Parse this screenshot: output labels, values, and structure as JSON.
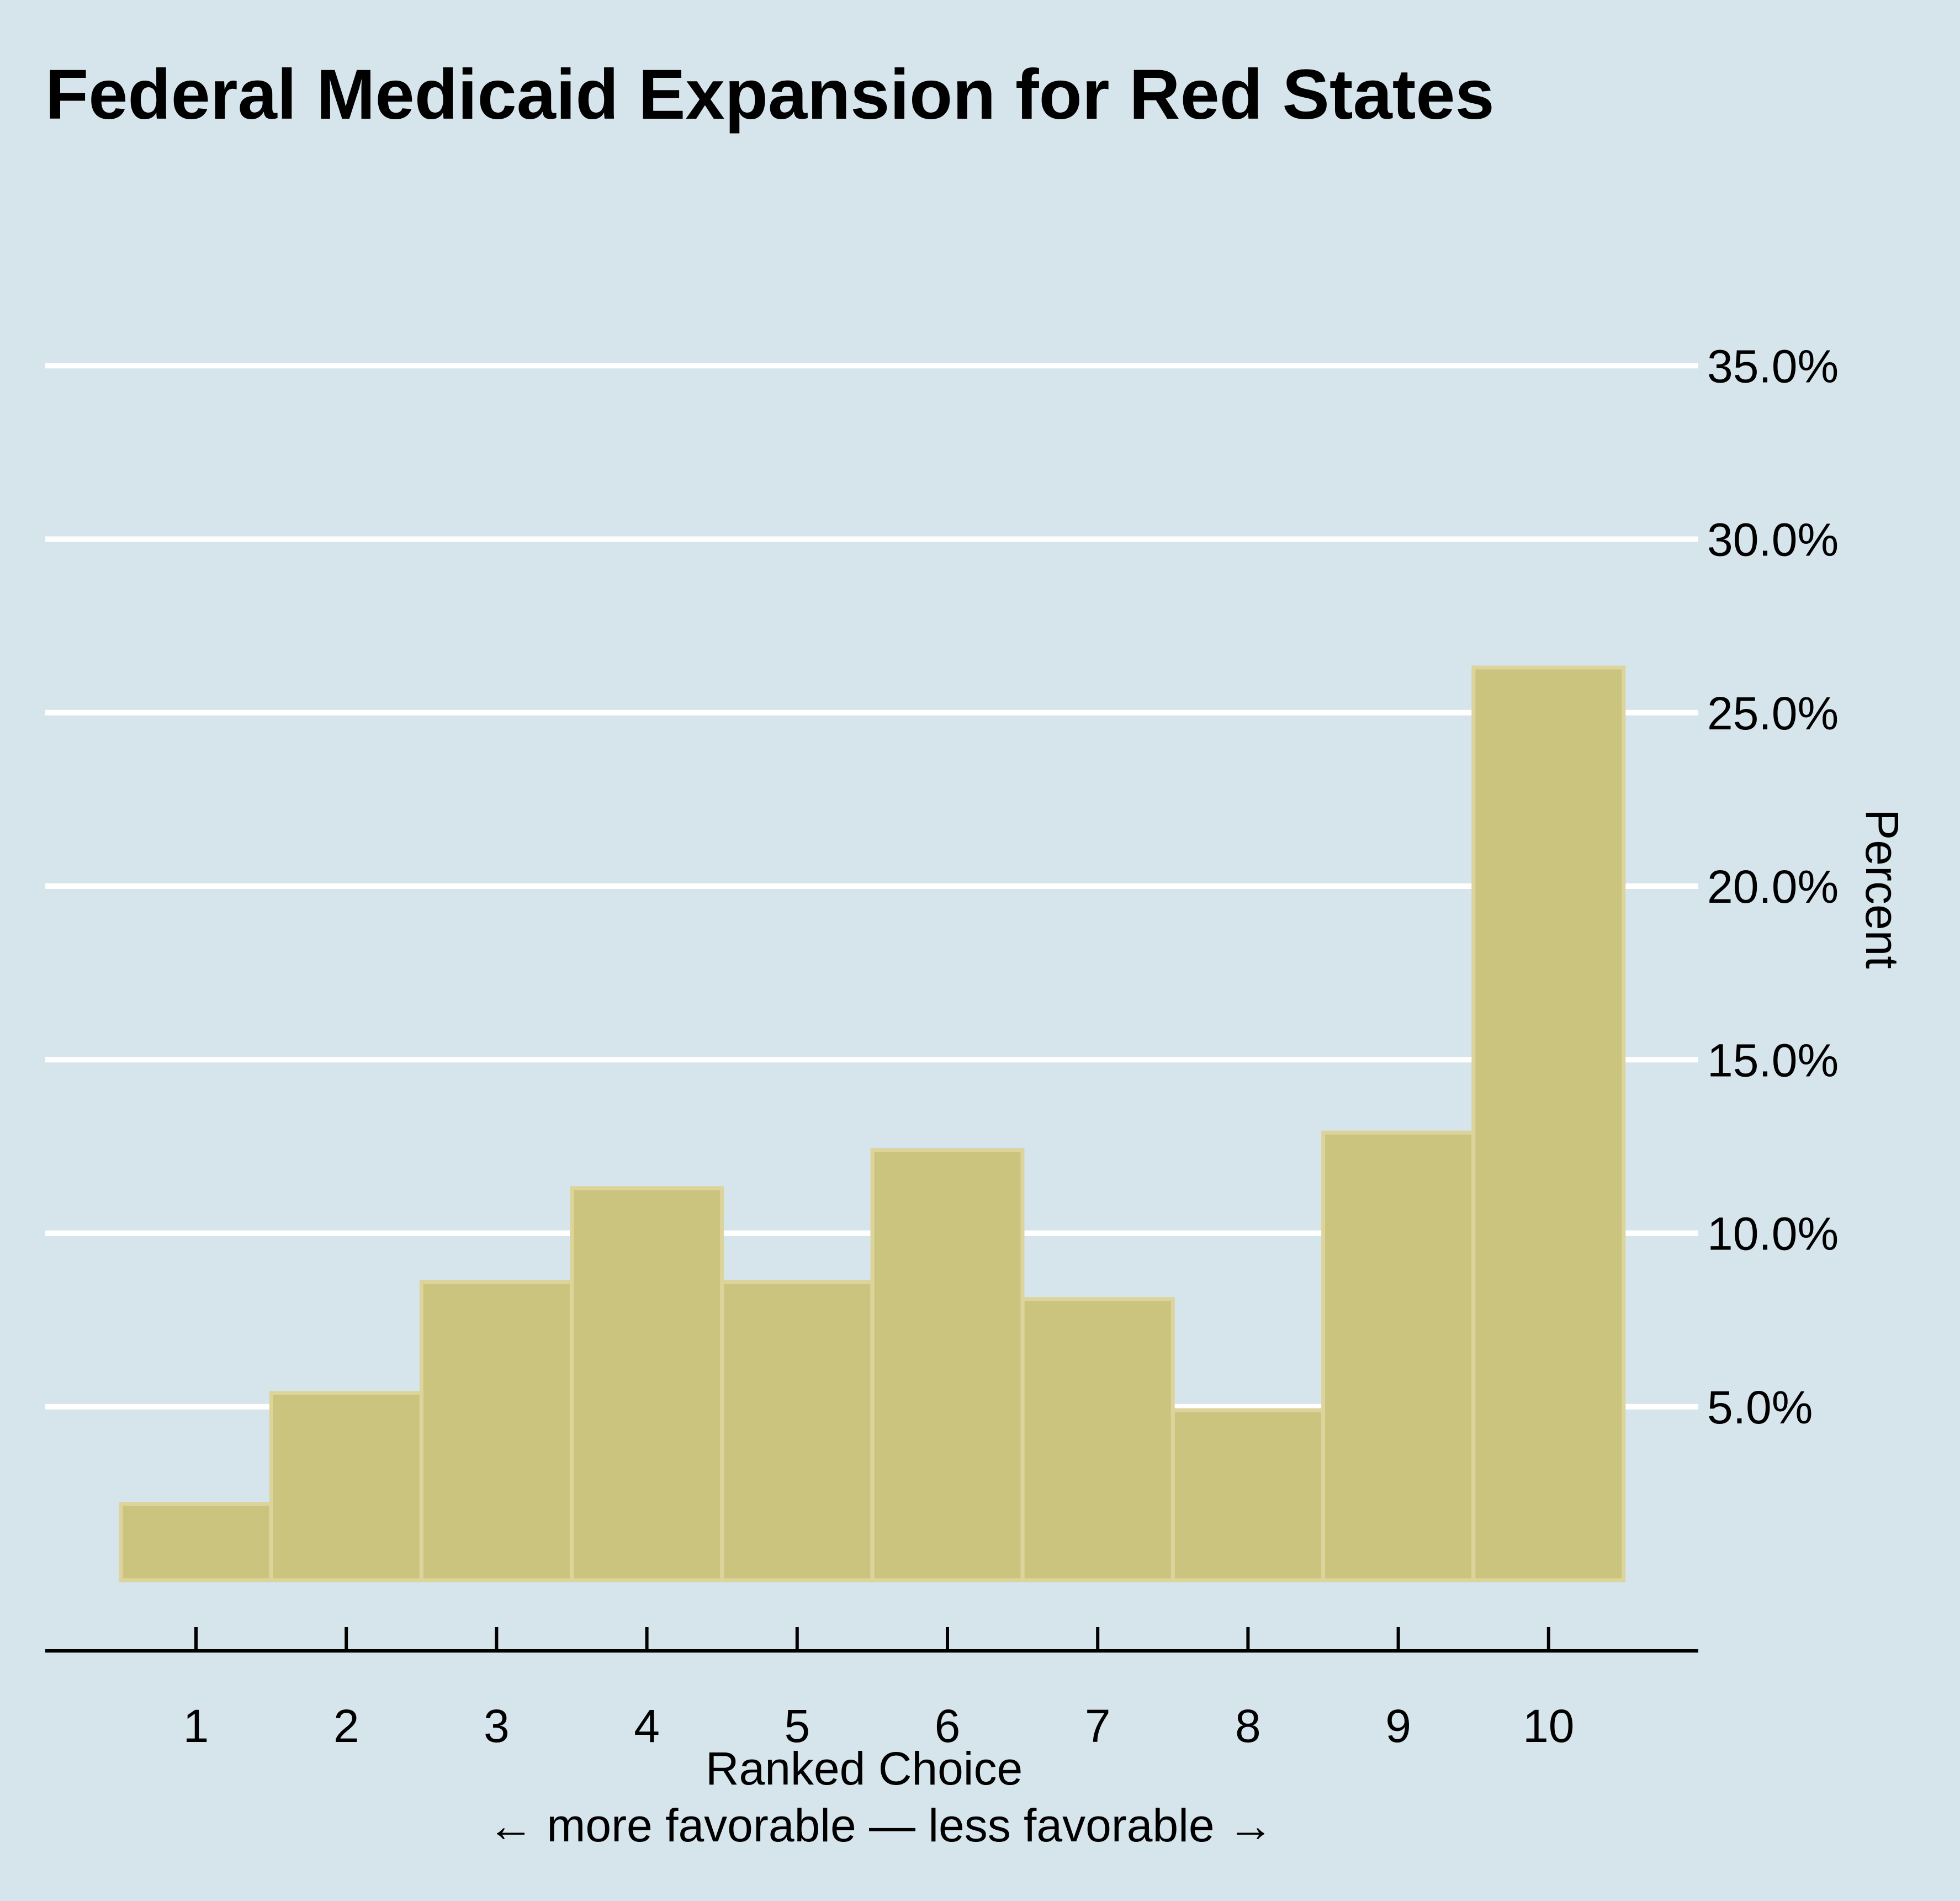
{
  "chart_data": {
    "type": "bar",
    "title": "Federal Medicaid Expansion for Red States",
    "xlabel": "Ranked Choice",
    "xlabel_sub": "← more favorable — less favorable →",
    "ylabel": "Percent",
    "categories": [
      "1",
      "2",
      "3",
      "4",
      "5",
      "6",
      "7",
      "8",
      "9",
      "10"
    ],
    "values": [
      2.2,
      5.4,
      8.6,
      11.3,
      8.6,
      12.4,
      8.1,
      4.9,
      12.9,
      26.3
    ],
    "ylim": [
      0,
      37.5
    ],
    "yticks": [
      5,
      10,
      15,
      20,
      25,
      30,
      35
    ],
    "ytick_labels": [
      "5.0%",
      "10.0%",
      "15.0%",
      "20.0%",
      "25.0%",
      "30.0%",
      "35.0%"
    ],
    "y_axis_position": "right",
    "grid": true,
    "legend": "none",
    "colors": {
      "background": "#d6e4eb",
      "bar_fill": "#cac47e",
      "bar_stroke": "#ddd49c",
      "grid": "#ffffff",
      "axis": "#000000",
      "text": "#000000"
    }
  }
}
